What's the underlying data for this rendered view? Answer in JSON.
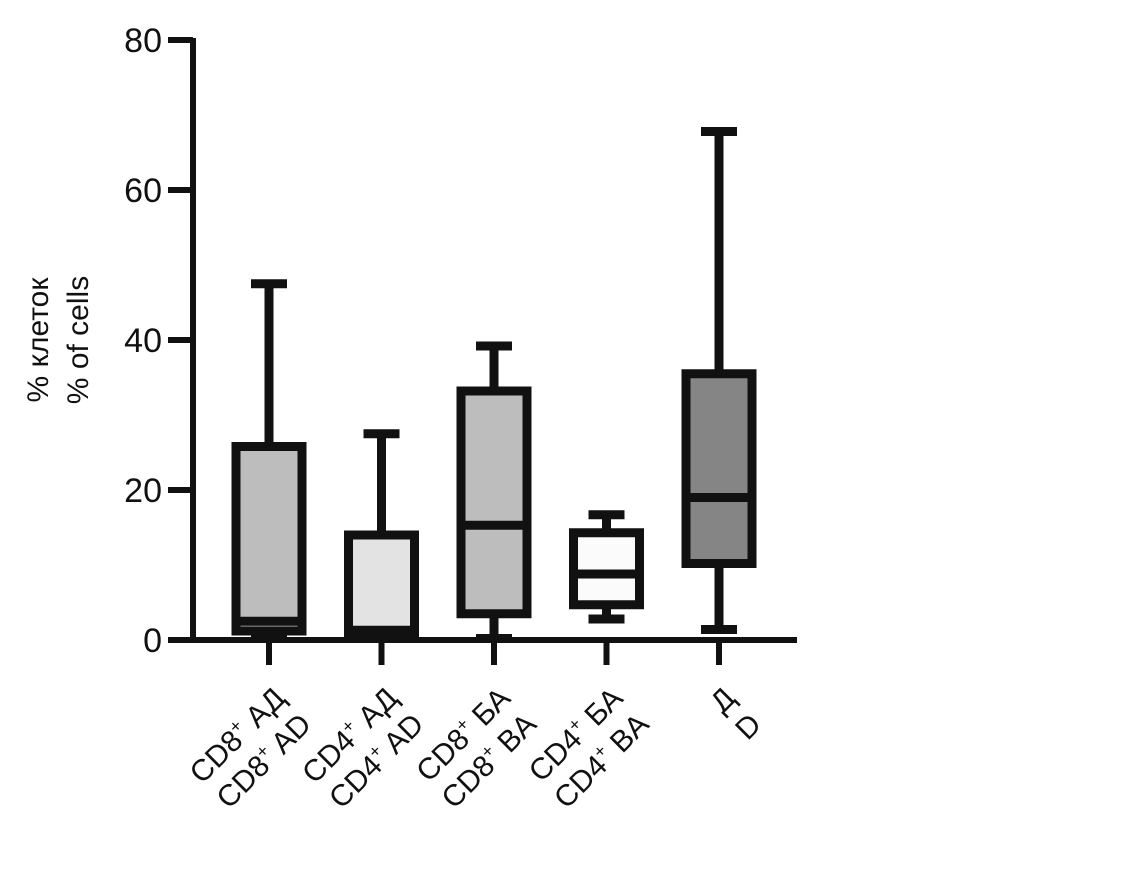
{
  "chart_data": {
    "type": "box",
    "ylabel_lines": [
      "% клеток",
      "% of cells"
    ],
    "ylim": [
      0,
      80
    ],
    "yticks": [
      0,
      20,
      40,
      60,
      80
    ],
    "grid": false,
    "categories": [
      {
        "line1": {
          "base": "CD8",
          "sup": "+",
          "rest": " АД"
        },
        "line2": {
          "base": "CD8",
          "sup": "+",
          "rest": " AD"
        },
        "fill": "#bdbdbd",
        "min": 0.3,
        "q1": 1.2,
        "median": 2.5,
        "q3": 25.8,
        "max": 47.5
      },
      {
        "line1": {
          "base": "CD4",
          "sup": "+",
          "rest": " АД"
        },
        "line2": {
          "base": "CD4",
          "sup": "+",
          "rest": " AD"
        },
        "fill": "#e3e3e3",
        "min": 0.2,
        "q1": 0.5,
        "median": 1.3,
        "q3": 14.0,
        "max": 27.5
      },
      {
        "line1": {
          "base": "CD8",
          "sup": "+",
          "rest": " БА"
        },
        "line2": {
          "base": "CD8",
          "sup": "+",
          "rest": " BA"
        },
        "fill": "#bdbdbd",
        "min": 0.2,
        "q1": 3.5,
        "median": 15.3,
        "q3": 33.2,
        "max": 39.2
      },
      {
        "line1": {
          "base": "CD4",
          "sup": "+",
          "rest": " БА"
        },
        "line2": {
          "base": "CD4",
          "sup": "+",
          "rest": " BA"
        },
        "fill": "#fbfbfb",
        "min": 2.8,
        "q1": 4.7,
        "median": 8.8,
        "q3": 14.3,
        "max": 16.7
      },
      {
        "line1": {
          "base": "Д",
          "sup": "",
          "rest": ""
        },
        "line2": {
          "base": "D",
          "sup": "",
          "rest": ""
        },
        "fill": "#858585",
        "min": 1.4,
        "q1": 10.2,
        "median": 19.0,
        "q3": 35.5,
        "max": 67.8
      }
    ]
  }
}
